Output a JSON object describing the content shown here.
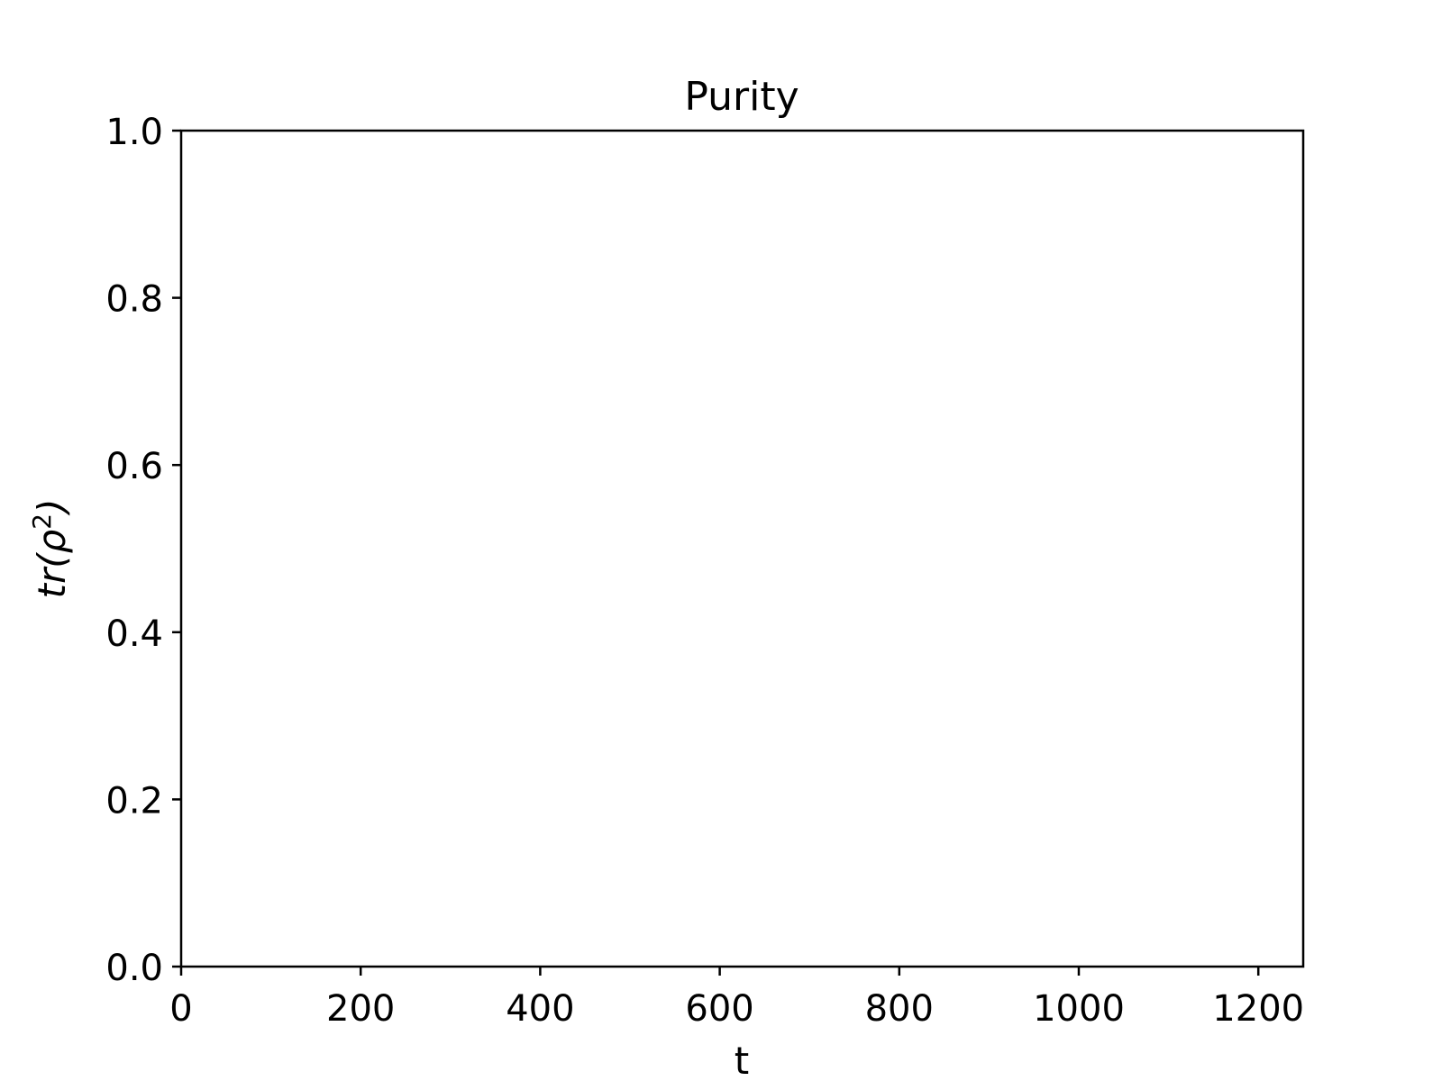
{
  "chart_data": {
    "type": "line",
    "title": "Purity",
    "xlabel": "t",
    "ylabel_base": "tr(ρ",
    "ylabel_sup": "2",
    "ylabel_close": ")",
    "xlim": [
      0,
      1250
    ],
    "ylim": [
      0.0,
      1.0
    ],
    "xticks": [
      0,
      200,
      400,
      600,
      800,
      1000,
      1200
    ],
    "xtick_labels": [
      "0",
      "200",
      "400",
      "600",
      "800",
      "1000",
      "1200"
    ],
    "yticks": [
      0.0,
      0.2,
      0.4,
      0.6,
      0.8,
      1.0
    ],
    "ytick_labels": [
      "0.0",
      "0.2",
      "0.4",
      "0.6",
      "0.8",
      "1.0"
    ],
    "series": [],
    "grid": false,
    "colors": {
      "axes": "#000000",
      "background": "#ffffff"
    }
  }
}
